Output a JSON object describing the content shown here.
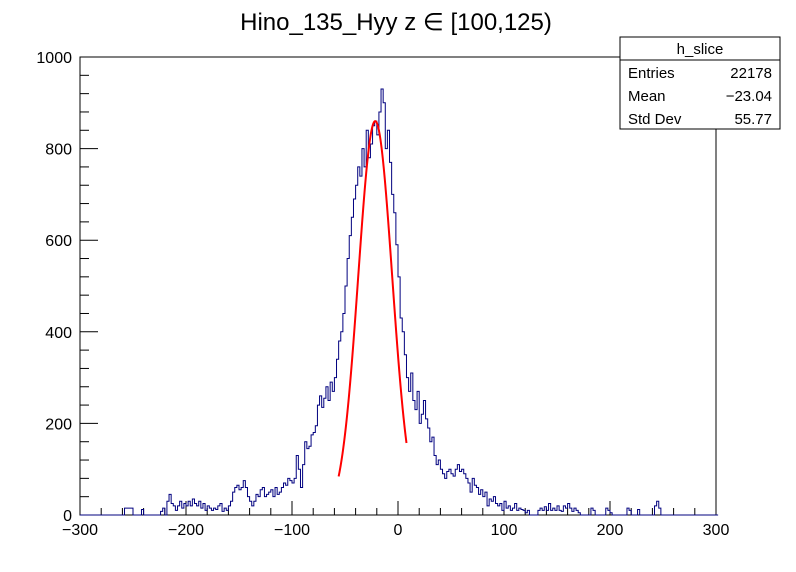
{
  "chart_data": {
    "type": "histogram",
    "title": "Hino_135_Hyy z  ∈ [100,125)",
    "xlabel": "",
    "ylabel": "",
    "xlim": [
      -300,
      300
    ],
    "ylim": [
      0,
      1000
    ],
    "x_ticks": [
      -300,
      -200,
      -100,
      0,
      100,
      200,
      300
    ],
    "x_tick_labels": [
      "−300",
      "−200",
      "−100",
      "0",
      "100",
      "200",
      "300"
    ],
    "y_ticks": [
      0,
      200,
      400,
      600,
      800,
      1000
    ],
    "y_tick_labels": [
      "0",
      "200",
      "400",
      "600",
      "800",
      "1000"
    ],
    "bin_width": 2,
    "histogram": {
      "color": "#00007f",
      "points": [
        [
          -300,
          0
        ],
        [
          -260,
          0
        ],
        [
          -258,
          15
        ],
        [
          -252,
          15
        ],
        [
          -250,
          0
        ],
        [
          -244,
          0
        ],
        [
          -242,
          12
        ],
        [
          -240,
          0
        ],
        [
          -226,
          0
        ],
        [
          -224,
          8
        ],
        [
          -222,
          15
        ],
        [
          -220,
          0
        ],
        [
          -218,
          30
        ],
        [
          -216,
          45
        ],
        [
          -214,
          25
        ],
        [
          -212,
          20
        ],
        [
          -210,
          10
        ],
        [
          -208,
          20
        ],
        [
          -206,
          30
        ],
        [
          -204,
          15
        ],
        [
          -202,
          25
        ],
        [
          -200,
          20
        ],
        [
          -198,
          30
        ],
        [
          -196,
          20
        ],
        [
          -194,
          35
        ],
        [
          -192,
          25
        ],
        [
          -190,
          20
        ],
        [
          -188,
          30
        ],
        [
          -186,
          15
        ],
        [
          -184,
          25
        ],
        [
          -182,
          10
        ],
        [
          -180,
          20
        ],
        [
          -178,
          15
        ],
        [
          -176,
          10
        ],
        [
          -174,
          15
        ],
        [
          -172,
          12
        ],
        [
          -170,
          20
        ],
        [
          -168,
          25
        ],
        [
          -166,
          8
        ],
        [
          -164,
          15
        ],
        [
          -162,
          10
        ],
        [
          -160,
          20
        ],
        [
          -158,
          30
        ],
        [
          -156,
          50
        ],
        [
          -154,
          60
        ],
        [
          -152,
          65
        ],
        [
          -150,
          55
        ],
        [
          -148,
          60
        ],
        [
          -146,
          75
        ],
        [
          -144,
          60
        ],
        [
          -142,
          40
        ],
        [
          -140,
          30
        ],
        [
          -138,
          20
        ],
        [
          -136,
          30
        ],
        [
          -134,
          45
        ],
        [
          -132,
          40
        ],
        [
          -130,
          55
        ],
        [
          -128,
          60
        ],
        [
          -126,
          40
        ],
        [
          -124,
          45
        ],
        [
          -122,
          50
        ],
        [
          -120,
          55
        ],
        [
          -118,
          40
        ],
        [
          -116,
          60
        ],
        [
          -114,
          45
        ],
        [
          -112,
          50
        ],
        [
          -110,
          60
        ],
        [
          -108,
          70
        ],
        [
          -106,
          65
        ],
        [
          -104,
          80
        ],
        [
          -102,
          75
        ],
        [
          -100,
          70
        ],
        [
          -98,
          80
        ],
        [
          -96,
          130
        ],
        [
          -94,
          100
        ],
        [
          -92,
          60
        ],
        [
          -90,
          110
        ],
        [
          -88,
          160
        ],
        [
          -86,
          145
        ],
        [
          -84,
          150
        ],
        [
          -82,
          175
        ],
        [
          -80,
          180
        ],
        [
          -78,
          195
        ],
        [
          -76,
          240
        ],
        [
          -74,
          260
        ],
        [
          -72,
          235
        ],
        [
          -70,
          255
        ],
        [
          -68,
          280
        ],
        [
          -66,
          250
        ],
        [
          -64,
          290
        ],
        [
          -62,
          270
        ],
        [
          -60,
          300
        ],
        [
          -58,
          340
        ],
        [
          -56,
          380
        ],
        [
          -54,
          400
        ],
        [
          -52,
          440
        ],
        [
          -50,
          500
        ],
        [
          -48,
          560
        ],
        [
          -46,
          610
        ],
        [
          -44,
          650
        ],
        [
          -42,
          690
        ],
        [
          -40,
          720
        ],
        [
          -38,
          760
        ],
        [
          -36,
          740
        ],
        [
          -34,
          800
        ],
        [
          -32,
          760
        ],
        [
          -30,
          840
        ],
        [
          -28,
          780
        ],
        [
          -26,
          810
        ],
        [
          -24,
          850
        ],
        [
          -22,
          860
        ],
        [
          -20,
          830
        ],
        [
          -18,
          880
        ],
        [
          -16,
          930
        ],
        [
          -14,
          900
        ],
        [
          -12,
          800
        ],
        [
          -10,
          840
        ],
        [
          -8,
          770
        ],
        [
          -6,
          700
        ],
        [
          -4,
          660
        ],
        [
          -2,
          590
        ],
        [
          0,
          520
        ],
        [
          2,
          430
        ],
        [
          4,
          400
        ],
        [
          6,
          350
        ],
        [
          8,
          300
        ],
        [
          10,
          270
        ],
        [
          12,
          310
        ],
        [
          14,
          250
        ],
        [
          16,
          230
        ],
        [
          18,
          270
        ],
        [
          20,
          200
        ],
        [
          22,
          220
        ],
        [
          24,
          250
        ],
        [
          26,
          210
        ],
        [
          28,
          190
        ],
        [
          30,
          160
        ],
        [
          32,
          170
        ],
        [
          34,
          130
        ],
        [
          36,
          110
        ],
        [
          38,
          120
        ],
        [
          40,
          100
        ],
        [
          42,
          90
        ],
        [
          44,
          80
        ],
        [
          46,
          95
        ],
        [
          48,
          100
        ],
        [
          50,
          90
        ],
        [
          52,
          85
        ],
        [
          54,
          100
        ],
        [
          56,
          110
        ],
        [
          58,
          95
        ],
        [
          60,
          100
        ],
        [
          62,
          90
        ],
        [
          64,
          80
        ],
        [
          66,
          70
        ],
        [
          68,
          50
        ],
        [
          70,
          80
        ],
        [
          72,
          65
        ],
        [
          74,
          60
        ],
        [
          76,
          45
        ],
        [
          78,
          55
        ],
        [
          80,
          40
        ],
        [
          82,
          50
        ],
        [
          84,
          20
        ],
        [
          86,
          35
        ],
        [
          88,
          30
        ],
        [
          90,
          40
        ],
        [
          92,
          25
        ],
        [
          94,
          20
        ],
        [
          96,
          25
        ],
        [
          98,
          10
        ],
        [
          100,
          30
        ],
        [
          102,
          15
        ],
        [
          104,
          20
        ],
        [
          106,
          10
        ],
        [
          108,
          15
        ],
        [
          110,
          25
        ],
        [
          112,
          10
        ],
        [
          114,
          15
        ],
        [
          116,
          12
        ],
        [
          118,
          10
        ],
        [
          120,
          5
        ],
        [
          122,
          10
        ],
        [
          124,
          0
        ],
        [
          130,
          0
        ],
        [
          132,
          10
        ],
        [
          134,
          15
        ],
        [
          136,
          10
        ],
        [
          138,
          18
        ],
        [
          140,
          10
        ],
        [
          142,
          25
        ],
        [
          144,
          10
        ],
        [
          146,
          15
        ],
        [
          148,
          10
        ],
        [
          150,
          20
        ],
        [
          152,
          10
        ],
        [
          154,
          8
        ],
        [
          156,
          20
        ],
        [
          158,
          15
        ],
        [
          160,
          25
        ],
        [
          162,
          15
        ],
        [
          164,
          8
        ],
        [
          166,
          15
        ],
        [
          168,
          10
        ],
        [
          170,
          5
        ],
        [
          172,
          0
        ],
        [
          180,
          0
        ],
        [
          182,
          15
        ],
        [
          184,
          10
        ],
        [
          186,
          0
        ],
        [
          194,
          0
        ],
        [
          196,
          15
        ],
        [
          198,
          10
        ],
        [
          200,
          5
        ],
        [
          202,
          0
        ],
        [
          214,
          0
        ],
        [
          216,
          15
        ],
        [
          218,
          10
        ],
        [
          220,
          0
        ],
        [
          224,
          0
        ],
        [
          226,
          12
        ],
        [
          228,
          0
        ],
        [
          240,
          0
        ],
        [
          242,
          20
        ],
        [
          244,
          30
        ],
        [
          246,
          15
        ],
        [
          248,
          0
        ],
        [
          300,
          0
        ]
      ]
    },
    "fit_curve": {
      "type": "gaussian",
      "color": "#ff0000",
      "amplitude": 860,
      "mean": -21.5,
      "sigma": 16,
      "x_range": [
        -56,
        8
      ]
    },
    "stats_box": {
      "title": "h_slice",
      "rows": [
        {
          "label": "Entries",
          "value": "22178"
        },
        {
          "label": "Mean",
          "value": "−23.04"
        },
        {
          "label": "Std Dev",
          "value": "55.77"
        }
      ]
    }
  }
}
